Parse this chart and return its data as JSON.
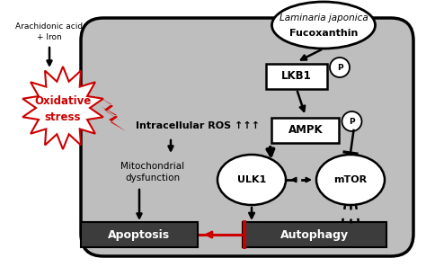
{
  "bg_color": "#ffffff",
  "cell_bg": "#bebebe",
  "box_color": "#3c3c3c",
  "box_text_color": "#ffffff",
  "signal_box_color": "#ffffff",
  "laminaria_text_italic": "Laminaria japonica",
  "laminaria_text_bold": "Fucoxanthin",
  "aa_line1": "Arachidonic acid",
  "aa_line2": "+ Iron",
  "oxidative_line1": "Oxidative",
  "oxidative_line2": "stress",
  "ros_text": "Intracellular ROS ↑↑↑",
  "mito_line1": "Mitochondrial",
  "mito_line2": "dysfunction",
  "lkb1_label": "LKB1",
  "ampk_label": "AMPK",
  "ulk1_label": "ULK1",
  "mtor_label": "mTOR",
  "apoptosis_label": "Apoptosis",
  "autophagy_label": "Autophagy",
  "red_color": "#cc0000",
  "black": "#000000",
  "white": "#ffffff"
}
